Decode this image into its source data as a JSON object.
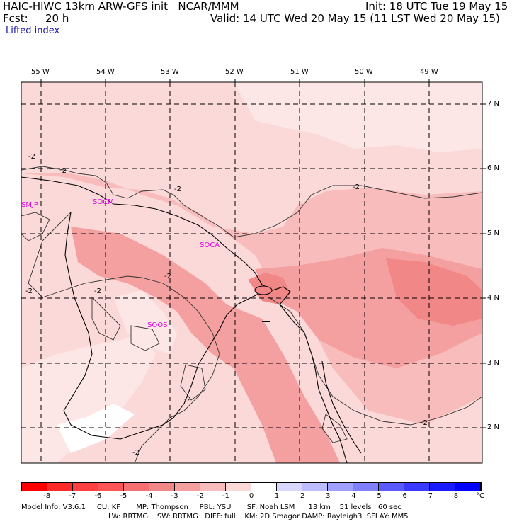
{
  "header": {
    "model_title": "HAIC-HIWC 13km ARW-GFS init   NCAR/MMM",
    "init": "Init: 18 UTC Tue 19 May 15",
    "fcst_label": "Fcst:",
    "fcst_value": "20 h",
    "valid": "Valid: 14 UTC Wed 20 May 15 (11 LST Wed 20 May 15)",
    "field": "Lifted index"
  },
  "map": {
    "lon_labels": [
      "55 W",
      "54 W",
      "53 W",
      "52 W",
      "51 W",
      "50 W",
      "49 W"
    ],
    "lat_labels": [
      "7 N",
      "6 N",
      "5 N",
      "4 N",
      "3 N",
      "2 N"
    ],
    "stations": [
      {
        "name": "SMJP",
        "lon": -55.2,
        "lat": 5.45
      },
      {
        "name": "SOCM",
        "lon": -54.1,
        "lat": 5.5
      },
      {
        "name": "SOCA",
        "lon": -52.37,
        "lat": 4.83
      },
      {
        "name": "SOOS",
        "lon": -53.2,
        "lat": 3.65
      }
    ],
    "contour_labels": [
      "-2",
      "-2",
      "-2",
      "-2",
      "-2",
      "-2",
      "-2",
      "-2",
      "-2",
      "-2"
    ]
  },
  "colorbar": {
    "ticks": [
      "-8",
      "-7",
      "-6",
      "-5",
      "-4",
      "-3",
      "-2",
      "-1",
      "0",
      "1",
      "2",
      "3",
      "4",
      "5",
      "6",
      "7",
      "8"
    ],
    "unit": "°C",
    "colors": [
      "#ff0000",
      "#ff2a2a",
      "#ff4040",
      "#ff5555",
      "#f57070",
      "#f28787",
      "#f5a0a0",
      "#f8bcbc",
      "#fcd9d9",
      "#ffffff",
      "#d8d8ff",
      "#bcbcff",
      "#a0a0ff",
      "#8080ff",
      "#5a5aff",
      "#3a3aff",
      "#1a1aff",
      "#0000ff"
    ]
  },
  "model_info": {
    "line1": "Model Info: V3.6.1     CU: KF       MP: Thompson     PBL: YSU       SF: Noah LSM      13 km    51 levels   60 sec",
    "line2": "LW: RRTMG    SW: RRTMG   DIFF: full    KM: 2D Smagor DAMP: Rayleigh3  SFLAY: MM5"
  }
}
